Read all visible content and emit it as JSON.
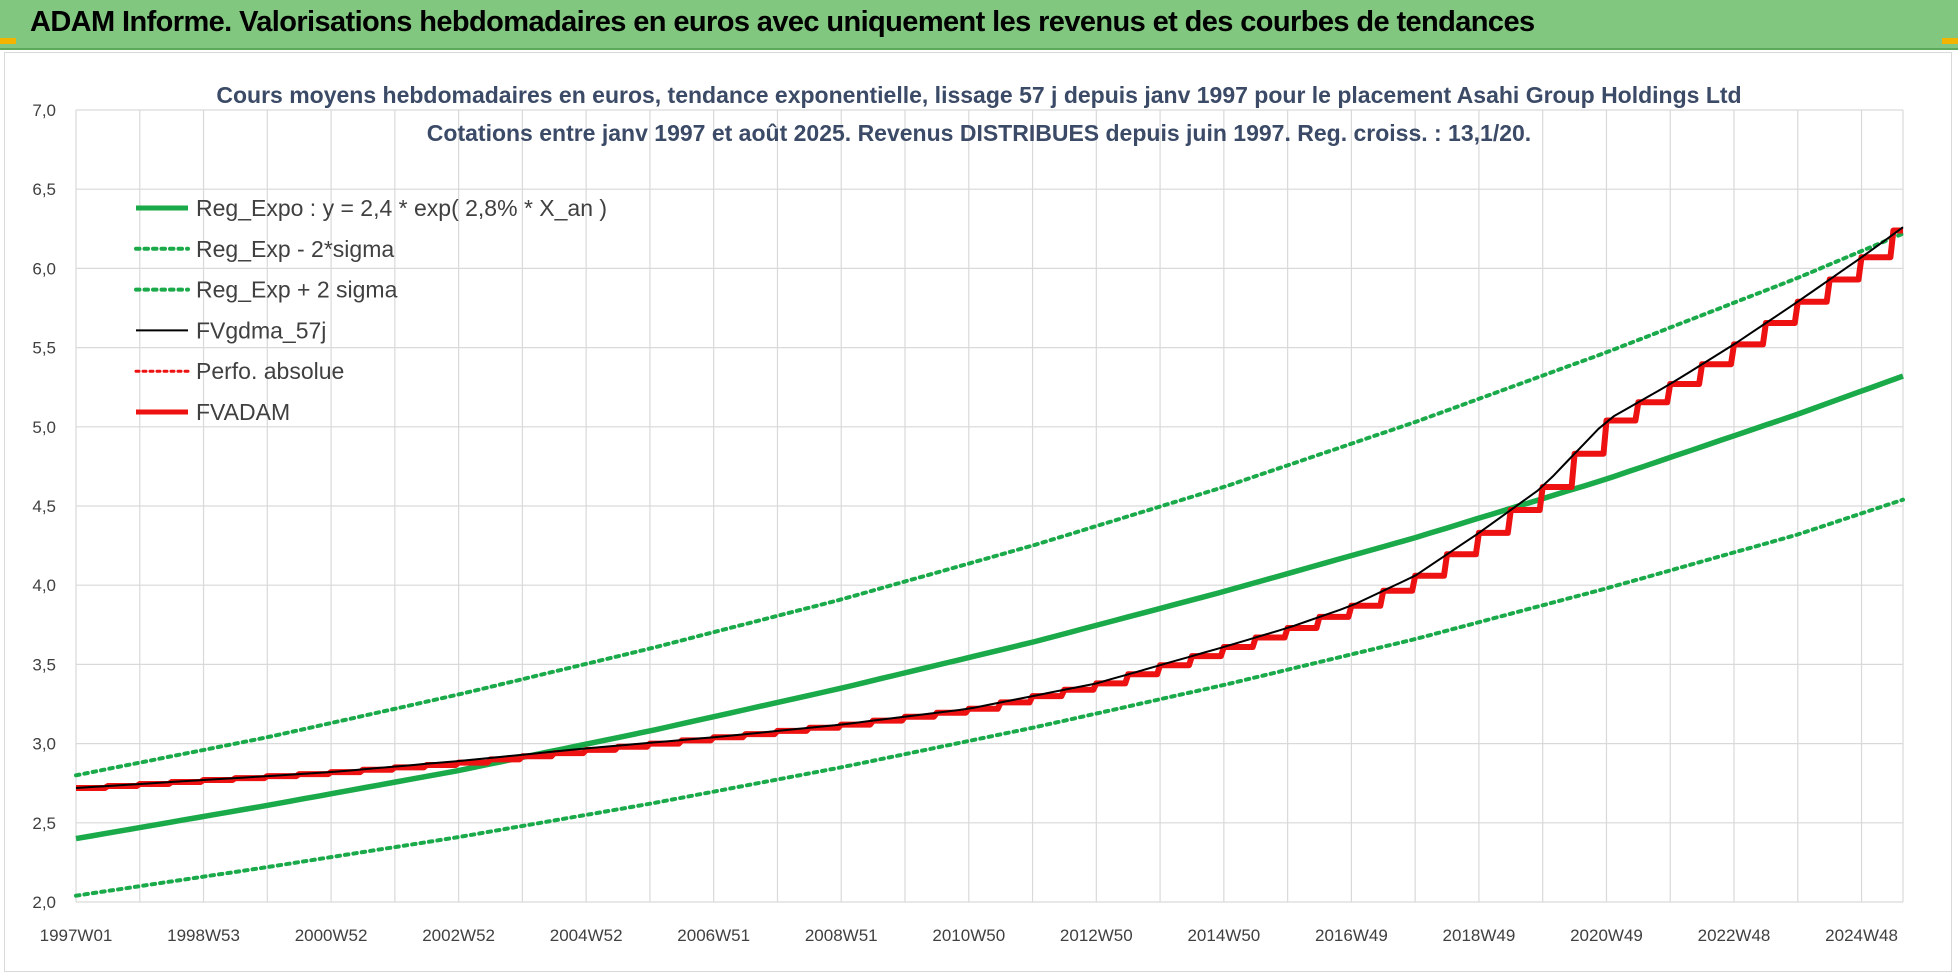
{
  "header": {
    "title": "ADAM Informe. Valorisations hebdomadaires en euros avec uniquement les revenus et des courbes de tendances"
  },
  "colors": {
    "banner": "#82c77f",
    "green": "#1aaa4a",
    "red": "#ee1111",
    "black": "#000000",
    "grid": "#d9d9d9"
  },
  "chart_data": {
    "type": "line",
    "title_lines": [
      "Cours moyens hebdomadaires en euros, tendance exponentielle, lissage 57 j depuis janv 1997 pour le placement Asahi Group Holdings Ltd",
      "Cotations entre janv 1997 et août 2025.  Revenus DISTRIBUES depuis juin 1997.  Reg. croiss. : 13,1/20."
    ],
    "x_ticks": [
      "1997W01",
      "1998W53",
      "2000W52",
      "2002W52",
      "2004W52",
      "2006W51",
      "2008W51",
      "2010W50",
      "2012W50",
      "2014W50",
      "2016W49",
      "2018W49",
      "2020W49",
      "2022W48",
      "2024W48"
    ],
    "x_tick_years": [
      1997.0,
      1999.0,
      2001.0,
      2003.0,
      2005.0,
      2007.0,
      2009.0,
      2011.0,
      2013.0,
      2015.0,
      2017.0,
      2019.0,
      2021.0,
      2023.0,
      2025.0
    ],
    "x_range": [
      1997.0,
      2025.65
    ],
    "y_ticks": [
      "2,0",
      "2,5",
      "3,0",
      "3,5",
      "4,0",
      "4,5",
      "5,0",
      "5,5",
      "6,0",
      "6,5",
      "7,0"
    ],
    "ylim": [
      2.0,
      7.0
    ],
    "grid": true,
    "legend_position": "top-left",
    "series": [
      {
        "name": "Reg_Expo : y = 2,4 * exp( 2,8% *  X_an )",
        "style": "solid-green",
        "x": [
          1997.0,
          2000.0,
          2003.0,
          2006.0,
          2009.0,
          2012.0,
          2015.0,
          2018.0,
          2021.0,
          2024.0,
          2025.65
        ],
        "values": [
          2.4,
          2.61,
          2.83,
          3.08,
          3.35,
          3.64,
          3.96,
          4.3,
          4.67,
          5.08,
          5.32
        ]
      },
      {
        "name": "Reg_Exp - 2*sigma",
        "style": "dotted-green",
        "x": [
          1997.0,
          2000.0,
          2003.0,
          2006.0,
          2009.0,
          2012.0,
          2015.0,
          2018.0,
          2021.0,
          2024.0,
          2025.65
        ],
        "values": [
          2.04,
          2.22,
          2.41,
          2.62,
          2.85,
          3.1,
          3.37,
          3.66,
          3.98,
          4.32,
          4.54
        ]
      },
      {
        "name": "Reg_Exp + 2 sigma",
        "style": "dotted-green",
        "x": [
          1997.0,
          2000.0,
          2003.0,
          2006.0,
          2009.0,
          2012.0,
          2015.0,
          2018.0,
          2021.0,
          2024.0,
          2025.65
        ],
        "values": [
          2.8,
          3.04,
          3.31,
          3.6,
          3.91,
          4.25,
          4.62,
          5.03,
          5.47,
          5.94,
          6.22
        ]
      },
      {
        "name": "FVgdma_57j",
        "style": "solid-black",
        "x": [
          1997.0,
          1999.0,
          2001.0,
          2003.0,
          2005.0,
          2007.0,
          2009.0,
          2011.0,
          2013.0,
          2015.0,
          2016.0,
          2017.0,
          2018.0,
          2019.0,
          2020.0,
          2021.0,
          2022.0,
          2023.0,
          2024.0,
          2025.0,
          2025.65
        ],
        "values": [
          2.72,
          2.77,
          2.82,
          2.89,
          2.97,
          3.04,
          3.12,
          3.22,
          3.38,
          3.61,
          3.73,
          3.87,
          4.06,
          4.33,
          4.62,
          5.04,
          5.27,
          5.52,
          5.79,
          6.07,
          6.26
        ]
      },
      {
        "name": "Perfo. absolue",
        "style": "dotted-red",
        "x": [],
        "values": []
      },
      {
        "name": "FVADAM",
        "style": "solid-red",
        "x": [
          1997.0,
          1999.0,
          2001.0,
          2003.0,
          2005.0,
          2007.0,
          2009.0,
          2011.0,
          2013.0,
          2015.0,
          2016.0,
          2017.0,
          2018.0,
          2019.0,
          2020.0,
          2021.0,
          2022.0,
          2023.0,
          2024.0,
          2025.0,
          2025.65
        ],
        "values": [
          2.72,
          2.77,
          2.82,
          2.88,
          2.96,
          3.04,
          3.12,
          3.22,
          3.38,
          3.61,
          3.73,
          3.87,
          4.06,
          4.33,
          4.62,
          5.04,
          5.27,
          5.52,
          5.79,
          6.07,
          6.29
        ]
      }
    ]
  }
}
